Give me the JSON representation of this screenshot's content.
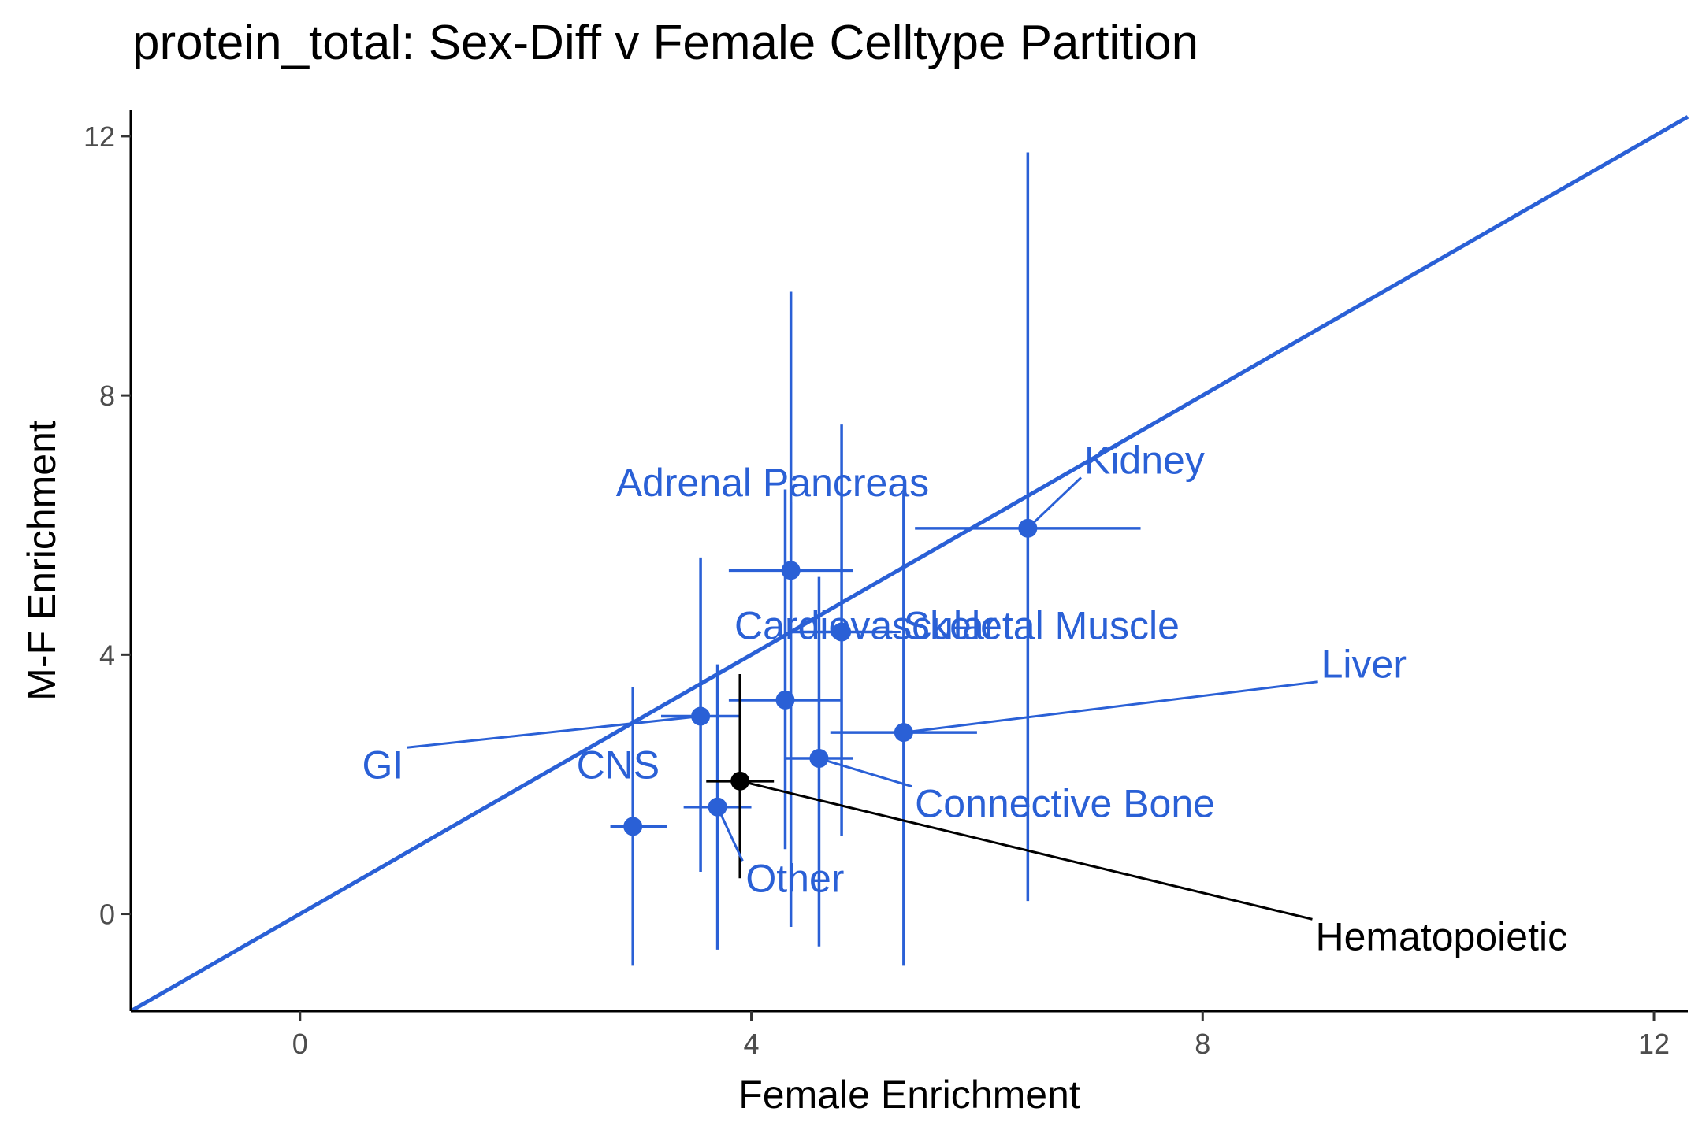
{
  "chart_data": {
    "type": "scatter",
    "title": "protein_total: Sex-Diff v Female Celltype Partition",
    "xlabel": "Female Enrichment",
    "ylabel": "M-F Enrichment",
    "xlim": [
      -1.5,
      12.3
    ],
    "ylim": [
      -1.5,
      12.4
    ],
    "xticks": [
      0,
      4,
      8,
      12
    ],
    "yticks": [
      0,
      4,
      8,
      12
    ],
    "grid": false,
    "legend": "none",
    "reference_line": {
      "slope": 1,
      "intercept": 0,
      "color": "#2a60d6"
    },
    "colors": {
      "default": "#2a60d6",
      "highlight": "#000000"
    },
    "points": [
      {
        "label": "Kidney",
        "x": 6.45,
        "y": 5.95,
        "xmin": 5.45,
        "xmax": 7.45,
        "ymin": 0.2,
        "ymax": 11.75,
        "label_x": 6.95,
        "label_y": 7.0,
        "color": "#2a60d6"
      },
      {
        "label": "Adrenal Pancreas",
        "x": 4.35,
        "y": 5.3,
        "xmin": 3.8,
        "xmax": 4.9,
        "ymin": -0.2,
        "ymax": 9.6,
        "label_x": 2.8,
        "label_y": 6.65,
        "color": "#2a60d6"
      },
      {
        "label": "Skeletal Muscle",
        "x": 4.8,
        "y": 4.35,
        "xmin": 4.35,
        "xmax": 5.25,
        "ymin": 1.2,
        "ymax": 7.55,
        "label_x": 5.35,
        "label_y": 4.45,
        "color": "#2a60d6"
      },
      {
        "label": "Cardiovascular",
        "x": 4.3,
        "y": 3.3,
        "xmin": 3.8,
        "xmax": 4.8,
        "ymin": 1.0,
        "ymax": 6.55,
        "label_x": 3.85,
        "label_y": 4.45,
        "color": "#2a60d6"
      },
      {
        "label": "Liver",
        "x": 5.35,
        "y": 2.8,
        "xmin": 4.7,
        "xmax": 6.0,
        "ymin": -0.8,
        "ymax": 6.5,
        "label_x": 9.05,
        "label_y": 3.85,
        "color": "#2a60d6"
      },
      {
        "label": "GI",
        "x": 3.55,
        "y": 3.05,
        "xmin": 3.2,
        "xmax": 3.9,
        "ymin": 0.65,
        "ymax": 5.5,
        "label_x": 0.55,
        "label_y": 2.3,
        "color": "#2a60d6"
      },
      {
        "label": "Connective Bone",
        "x": 4.6,
        "y": 2.4,
        "xmin": 4.3,
        "xmax": 4.9,
        "ymin": -0.5,
        "ymax": 5.2,
        "label_x": 5.45,
        "label_y": 1.7,
        "color": "#2a60d6"
      },
      {
        "label": "CNS",
        "x": 2.95,
        "y": 1.35,
        "xmin": 2.75,
        "xmax": 3.25,
        "ymin": -0.8,
        "ymax": 3.5,
        "label_x": 2.45,
        "label_y": 2.3,
        "color": "#2a60d6"
      },
      {
        "label": "Other",
        "x": 3.7,
        "y": 1.65,
        "xmin": 3.4,
        "xmax": 4.0,
        "ymin": -0.55,
        "ymax": 3.85,
        "label_x": 3.95,
        "label_y": 0.55,
        "color": "#2a60d6"
      },
      {
        "label": "Hematopoietic",
        "x": 3.9,
        "y": 2.05,
        "xmin": 3.6,
        "xmax": 4.2,
        "ymin": 0.55,
        "ymax": 3.7,
        "label_x": 9.0,
        "label_y": -0.35,
        "color": "#000000"
      }
    ]
  }
}
